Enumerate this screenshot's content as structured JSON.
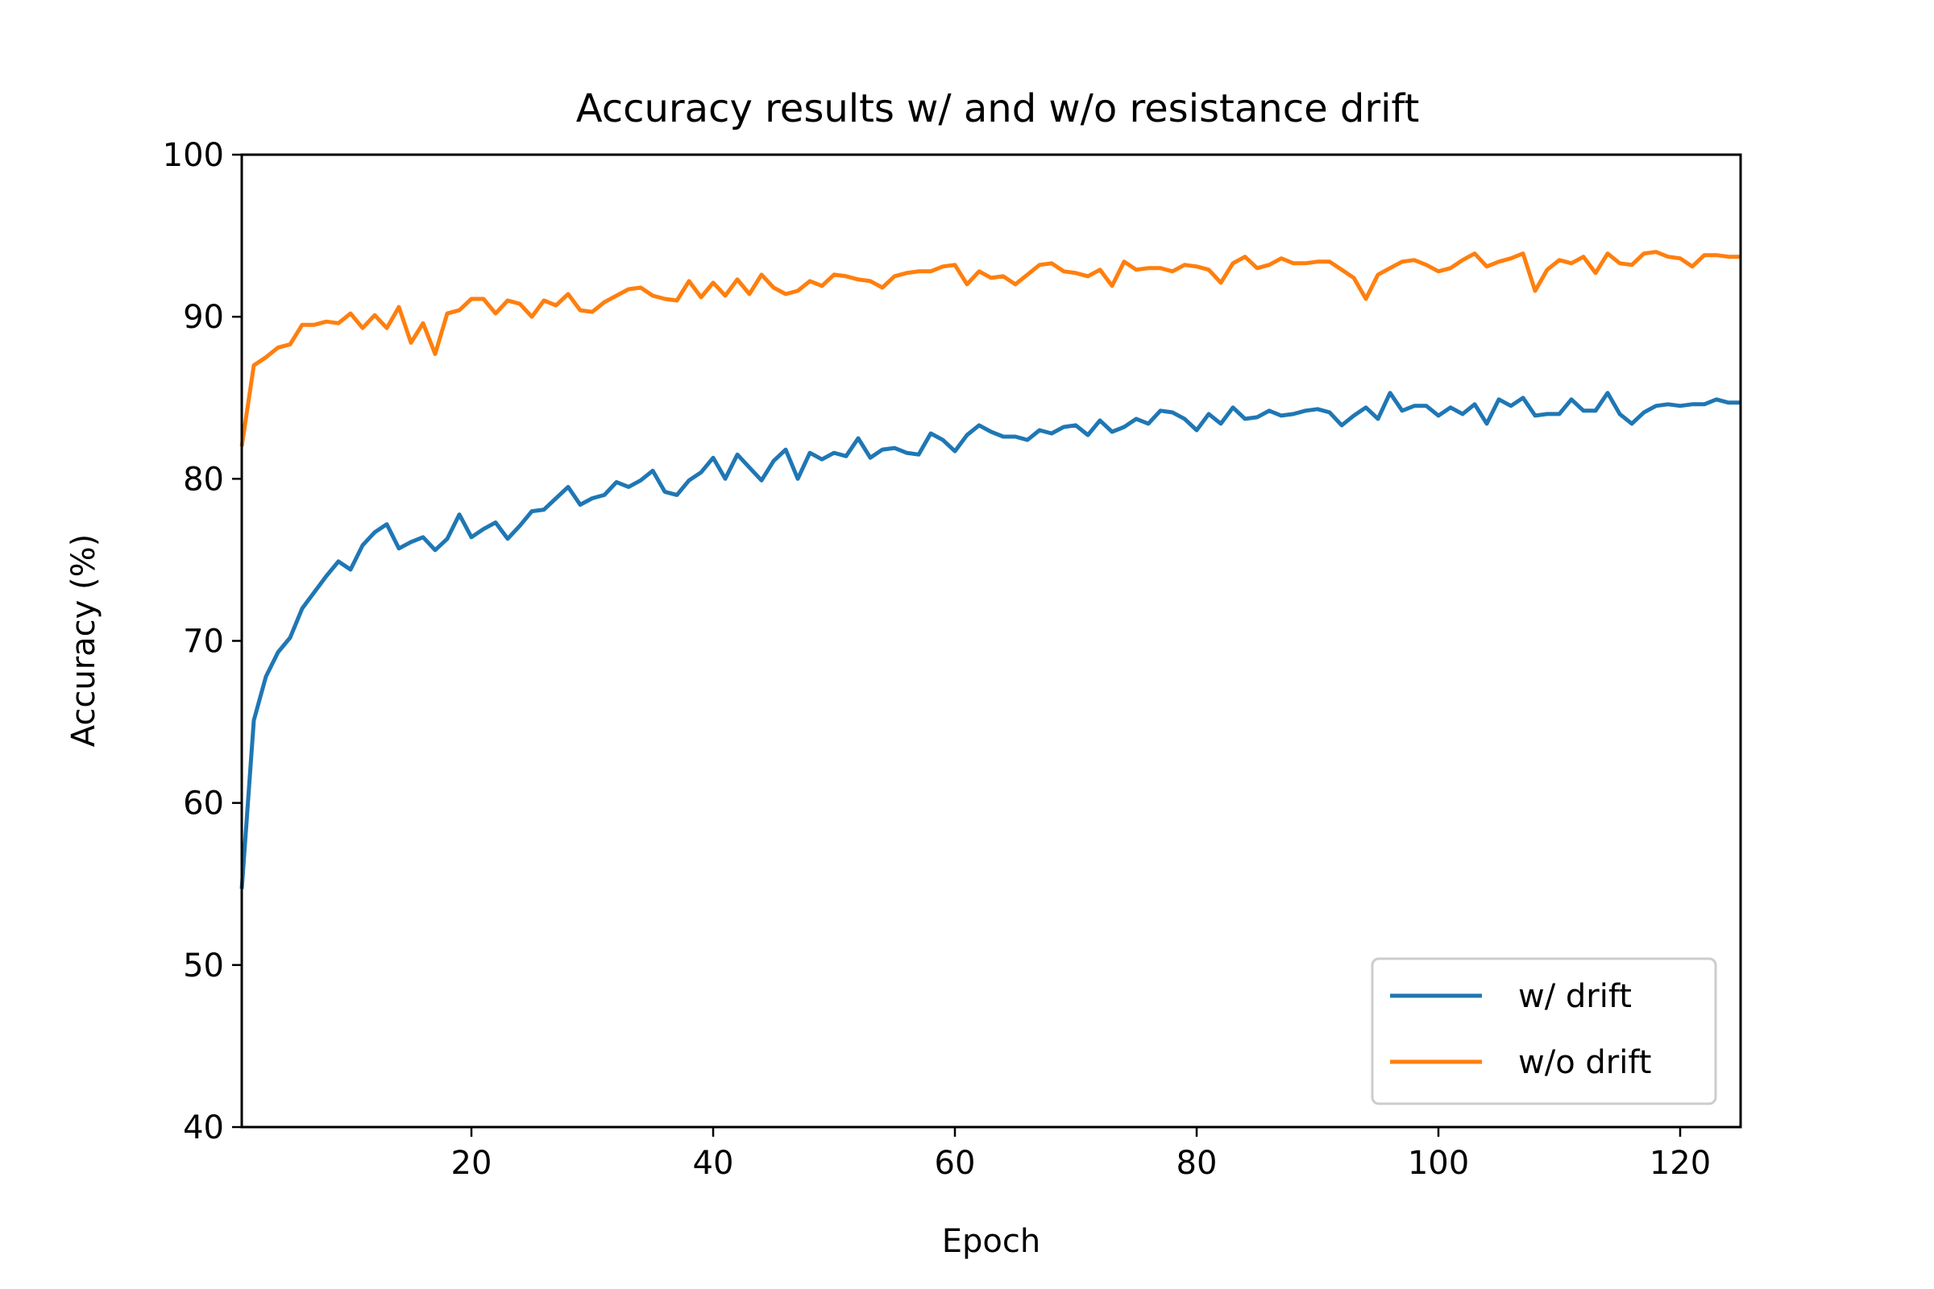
{
  "chart_data": {
    "type": "line",
    "title": "Accuracy results w/ and w/o resistance drift",
    "xlabel": "Epoch",
    "ylabel": "Accuracy (%)",
    "xlim": [
      1,
      125
    ],
    "ylim": [
      40,
      100
    ],
    "xticks": [
      20,
      40,
      60,
      80,
      100,
      120
    ],
    "yticks": [
      40,
      50,
      60,
      70,
      80,
      90,
      100
    ],
    "grid": false,
    "legend_position": "lower-right",
    "series": [
      {
        "name": "w/ drift",
        "color": "#1f77b4",
        "x": [
          1,
          2,
          3,
          4,
          5,
          6,
          7,
          8,
          9,
          10,
          11,
          12,
          13,
          14,
          15,
          16,
          17,
          18,
          19,
          20,
          21,
          22,
          23,
          24,
          25,
          26,
          27,
          28,
          29,
          30,
          31,
          32,
          33,
          34,
          35,
          36,
          37,
          38,
          39,
          40,
          41,
          42,
          43,
          44,
          45,
          46,
          47,
          48,
          49,
          50,
          51,
          52,
          53,
          54,
          55,
          56,
          57,
          58,
          59,
          60,
          61,
          62,
          63,
          64,
          65,
          66,
          67,
          68,
          69,
          70,
          71,
          72,
          73,
          74,
          75,
          76,
          77,
          78,
          79,
          80,
          81,
          82,
          83,
          84,
          85,
          86,
          87,
          88,
          89,
          90,
          91,
          92,
          93,
          94,
          95,
          96,
          97,
          98,
          99,
          100,
          101,
          102,
          103,
          104,
          105,
          106,
          107,
          108,
          109,
          110,
          111,
          112,
          113,
          114,
          115,
          116,
          117,
          118,
          119,
          120,
          121,
          122,
          123,
          124,
          125
        ],
        "values": [
          54.7,
          65.1,
          67.8,
          69.3,
          70.2,
          72.0,
          73.0,
          74.0,
          74.9,
          74.4,
          75.9,
          76.7,
          77.2,
          75.7,
          76.1,
          76.4,
          75.6,
          76.3,
          77.8,
          76.4,
          76.9,
          77.3,
          76.3,
          77.1,
          78.0,
          78.1,
          78.8,
          79.5,
          78.4,
          78.8,
          79.0,
          79.8,
          79.5,
          79.9,
          80.5,
          79.2,
          79.0,
          79.9,
          80.4,
          81.3,
          80.0,
          81.5,
          80.7,
          79.9,
          81.1,
          81.8,
          80.0,
          81.6,
          81.2,
          81.6,
          81.4,
          82.5,
          81.3,
          81.8,
          81.9,
          81.6,
          81.5,
          82.8,
          82.4,
          81.7,
          82.7,
          83.3,
          82.9,
          82.6,
          82.6,
          82.4,
          83.0,
          82.8,
          83.2,
          83.3,
          82.7,
          83.6,
          82.9,
          83.2,
          83.7,
          83.4,
          84.2,
          84.1,
          83.7,
          83.0,
          84.0,
          83.4,
          84.4,
          83.7,
          83.8,
          84.2,
          83.9,
          84.0,
          84.2,
          84.3,
          84.1,
          83.3,
          83.9,
          84.4,
          83.7,
          85.3,
          84.2,
          84.5,
          84.5,
          83.9,
          84.4,
          84.0,
          84.6,
          83.4,
          84.9,
          84.5,
          85.0,
          83.9,
          84.0,
          84.0,
          84.9,
          84.2,
          84.2,
          85.3,
          84.0,
          83.4,
          84.1,
          84.5,
          84.6,
          84.5,
          84.6,
          84.6,
          84.9,
          84.7,
          84.7
        ]
      },
      {
        "name": "w/o drift",
        "color": "#ff7f0e",
        "x": [
          1,
          2,
          3,
          4,
          5,
          6,
          7,
          8,
          9,
          10,
          11,
          12,
          13,
          14,
          15,
          16,
          17,
          18,
          19,
          20,
          21,
          22,
          23,
          24,
          25,
          26,
          27,
          28,
          29,
          30,
          31,
          32,
          33,
          34,
          35,
          36,
          37,
          38,
          39,
          40,
          41,
          42,
          43,
          44,
          45,
          46,
          47,
          48,
          49,
          50,
          51,
          52,
          53,
          54,
          55,
          56,
          57,
          58,
          59,
          60,
          61,
          62,
          63,
          64,
          65,
          66,
          67,
          68,
          69,
          70,
          71,
          72,
          73,
          74,
          75,
          76,
          77,
          78,
          79,
          80,
          81,
          82,
          83,
          84,
          85,
          86,
          87,
          88,
          89,
          90,
          91,
          92,
          93,
          94,
          95,
          96,
          97,
          98,
          99,
          100,
          101,
          102,
          103,
          104,
          105,
          106,
          107,
          108,
          109,
          110,
          111,
          112,
          113,
          114,
          115,
          116,
          117,
          118,
          119,
          120,
          121,
          122,
          123,
          124,
          125
        ],
        "values": [
          82.0,
          87.0,
          87.5,
          88.1,
          88.3,
          89.5,
          89.5,
          89.7,
          89.6,
          90.2,
          89.3,
          90.1,
          89.3,
          90.6,
          88.4,
          89.6,
          87.7,
          90.2,
          90.4,
          91.1,
          91.1,
          90.2,
          91.0,
          90.8,
          90.0,
          91.0,
          90.7,
          91.4,
          90.4,
          90.3,
          90.9,
          91.3,
          91.7,
          91.8,
          91.3,
          91.1,
          91.0,
          92.2,
          91.2,
          92.1,
          91.3,
          92.3,
          91.4,
          92.6,
          91.8,
          91.4,
          91.6,
          92.2,
          91.9,
          92.6,
          92.5,
          92.3,
          92.2,
          91.8,
          92.5,
          92.7,
          92.8,
          92.8,
          93.1,
          93.2,
          92.0,
          92.8,
          92.4,
          92.5,
          92.0,
          92.6,
          93.2,
          93.3,
          92.8,
          92.7,
          92.5,
          92.9,
          91.9,
          93.4,
          92.9,
          93.0,
          93.0,
          92.8,
          93.2,
          93.1,
          92.9,
          92.1,
          93.3,
          93.7,
          93.0,
          93.2,
          93.6,
          93.3,
          93.3,
          93.4,
          93.4,
          92.9,
          92.4,
          91.1,
          92.6,
          93.0,
          93.4,
          93.5,
          93.2,
          92.8,
          93.0,
          93.5,
          93.9,
          93.1,
          93.4,
          93.6,
          93.9,
          91.6,
          92.9,
          93.5,
          93.3,
          93.7,
          92.7,
          93.9,
          93.3,
          93.2,
          93.9,
          94.0,
          93.7,
          93.6,
          93.1,
          93.8,
          93.8,
          93.7,
          93.7
        ]
      }
    ]
  }
}
